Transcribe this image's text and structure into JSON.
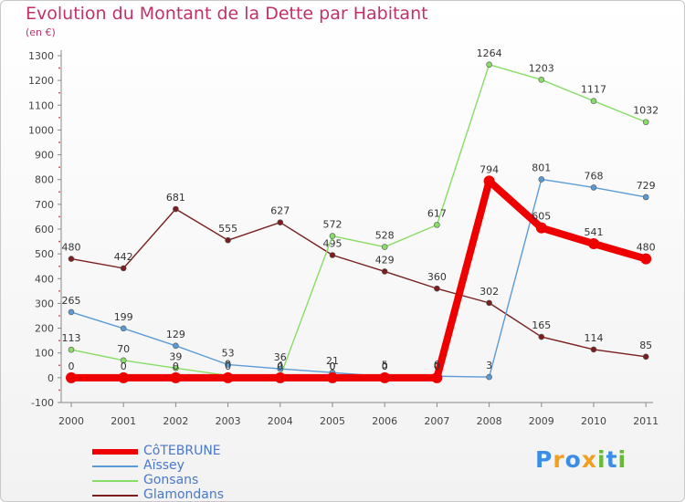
{
  "chart_data": {
    "type": "line",
    "title": "Evolution du Montant de la Dette par Habitant",
    "subtitle": "(en €)",
    "x": [
      "2000",
      "2001",
      "2002",
      "2003",
      "2004",
      "2005",
      "2006",
      "2007",
      "2008",
      "2009",
      "2010",
      "2011"
    ],
    "ylim": [
      -100,
      1300
    ],
    "yticks": [
      -100,
      0,
      100,
      200,
      300,
      400,
      500,
      600,
      700,
      800,
      900,
      1000,
      1100,
      1200,
      1300
    ],
    "grid": false,
    "legend_position": "bottom-left",
    "series": [
      {
        "name": "Glamondans",
        "color": "#7a1e1e",
        "values": [
          480,
          442,
          681,
          555,
          627,
          495,
          429,
          360,
          302,
          165,
          114,
          85
        ],
        "labels": [
          "480",
          "442",
          "681",
          "555",
          "627",
          "495",
          "429",
          "360",
          "302",
          "165",
          "114",
          "85"
        ]
      },
      {
        "name": "Gonsans",
        "color": "#88dd66",
        "values": [
          113,
          70,
          39,
          9,
          4,
          572,
          528,
          617,
          1264,
          1203,
          1117,
          1032
        ],
        "labels": [
          "113",
          "70",
          "39",
          "9",
          "4",
          "572",
          "528",
          "617",
          "1264",
          "1203",
          "1117",
          "1032"
        ]
      },
      {
        "name": "Aïssey",
        "color": "#5b9bd5",
        "values": [
          265,
          199,
          129,
          53,
          36,
          21,
          5,
          6,
          3,
          801,
          768,
          729
        ],
        "labels": [
          "265",
          "199",
          "129",
          "53",
          "36",
          "21",
          "5",
          "6",
          "3",
          "801",
          "768",
          "729"
        ]
      },
      {
        "name": "CôTEBRUNE",
        "color": "#ee0000",
        "values": [
          0,
          0,
          0,
          0,
          0,
          0,
          0,
          0,
          794,
          605,
          541,
          480
        ],
        "labels": [
          "0",
          "0",
          "0",
          "0",
          "0",
          "0",
          "0",
          "0",
          "794",
          "605",
          "541",
          "480"
        ]
      }
    ],
    "extra_labels": [
      {
        "x": "2005",
        "value": 0,
        "text": "0"
      },
      {
        "x": "2006",
        "value": 0,
        "text": "0"
      },
      {
        "x": "2007",
        "value": 0,
        "text": "0"
      }
    ]
  },
  "legend": {
    "items": [
      {
        "name": "CôTEBRUNE",
        "color": "#ee0000"
      },
      {
        "name": "Aïssey",
        "color": "#5b9bd5"
      },
      {
        "name": "Gonsans",
        "color": "#88dd66"
      },
      {
        "name": "Glamondans",
        "color": "#7a1e1e"
      }
    ]
  },
  "logo": {
    "letters": [
      "P",
      "r",
      "o",
      "x",
      "i",
      "t",
      "i"
    ],
    "colors": [
      "#3a8ee6",
      "#f0a020",
      "#3a8ee6",
      "#f0a020",
      "#66bb33",
      "#3a8ee6",
      "#66bb33"
    ]
  }
}
